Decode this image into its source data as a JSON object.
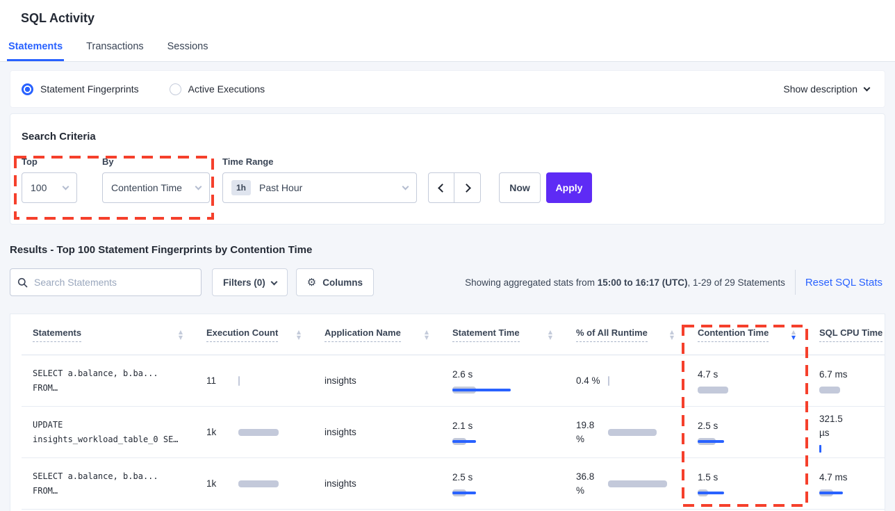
{
  "page": {
    "title": "SQL Activity"
  },
  "tabs": [
    {
      "label": "Statements",
      "active": true
    },
    {
      "label": "Transactions",
      "active": false
    },
    {
      "label": "Sessions",
      "active": false
    }
  ],
  "band": {
    "modes": [
      {
        "label": "Statement Fingerprints",
        "selected": true
      },
      {
        "label": "Active Executions",
        "selected": false
      }
    ],
    "show_description": "Show description"
  },
  "criteria": {
    "heading": "Search Criteria",
    "top_label": "Top",
    "top_value": "100",
    "by_label": "By",
    "by_value": "Contention Time",
    "time_label": "Time Range",
    "time_badge": "1h",
    "time_value": "Past Hour",
    "now": "Now",
    "apply": "Apply"
  },
  "results": {
    "heading": "Results - Top 100 Statement Fingerprints by Contention Time",
    "search_placeholder": "Search Statements",
    "filters_label": "Filters (0)",
    "columns_label": "Columns",
    "showing_prefix": "Showing aggregated stats from ",
    "showing_bold": "15:00 to 16:17 (UTC)",
    "showing_suffix": ", 1-29 of 29 Statements",
    "reset_label": "Reset SQL Stats"
  },
  "table": {
    "columns": [
      {
        "label": "Statements",
        "key": "statement",
        "type": "statement",
        "sort": "both"
      },
      {
        "label": "Execution Count",
        "key": "execution_count",
        "type": "inline",
        "sort": "both"
      },
      {
        "label": "Application Name",
        "key": "application",
        "type": "text",
        "sort": "both"
      },
      {
        "label": "Statement Time",
        "key": "statement_time",
        "type": "stacked",
        "sort": "both"
      },
      {
        "label": "% of All Runtime",
        "key": "runtime_pct",
        "type": "inline",
        "sort": "both"
      },
      {
        "label": "Contention Time",
        "key": "contention_time",
        "type": "stacked",
        "sort": "desc"
      },
      {
        "label": "SQL CPU Time",
        "key": "sql_cpu",
        "type": "stacked",
        "sort": "none"
      }
    ],
    "rows": [
      {
        "statement": [
          "SELECT a.balance, b.ba...",
          "FROM…"
        ],
        "execution_count": {
          "text": [
            "11"
          ],
          "tick": "gray"
        },
        "application": "insights",
        "statement_time": {
          "text": [
            "2.6 s"
          ],
          "bar": 34,
          "line": 84
        },
        "runtime_pct": {
          "text": [
            "0.4 %"
          ],
          "tick": "gray"
        },
        "contention_time": {
          "text": [
            "4.7 s"
          ],
          "bar": 44
        },
        "sql_cpu": {
          "text": [
            "6.7 ms"
          ],
          "bar": 30
        }
      },
      {
        "statement": [
          "UPDATE",
          "insights_workload_table_0 SE…"
        ],
        "execution_count": {
          "text": [
            "1k"
          ],
          "bar": 58
        },
        "application": "insights",
        "statement_time": {
          "text": [
            "2.1 s"
          ],
          "bar": 20,
          "line": 34
        },
        "runtime_pct": {
          "text": [
            "19.8",
            "%"
          ],
          "bar": 70
        },
        "contention_time": {
          "text": [
            "2.5 s"
          ],
          "bar": 26,
          "line": 38
        },
        "sql_cpu": {
          "text": [
            "321.5",
            "µs"
          ],
          "tick": "blue"
        }
      },
      {
        "statement": [
          "SELECT a.balance, b.ba...",
          "FROM…"
        ],
        "execution_count": {
          "text": [
            "1k"
          ],
          "bar": 58
        },
        "application": "insights",
        "statement_time": {
          "text": [
            "2.5 s"
          ],
          "bar": 20,
          "line": 34
        },
        "runtime_pct": {
          "text": [
            "36.8",
            "%"
          ],
          "bar": 85
        },
        "contention_time": {
          "text": [
            "1.5 s"
          ],
          "bar": 15,
          "line": 38
        },
        "sql_cpu": {
          "text": [
            "4.7 ms"
          ],
          "bar": 20,
          "line": 34
        }
      }
    ]
  },
  "annotations": [
    {
      "target": "top-by-controls"
    },
    {
      "target": "contention-time-column"
    }
  ],
  "colors": {
    "accent": "#2962ff",
    "apply": "#5e2bf5",
    "bar_gray": "#c3c9da",
    "bar_blue": "#2962ff",
    "annotation": "#f5402c"
  }
}
